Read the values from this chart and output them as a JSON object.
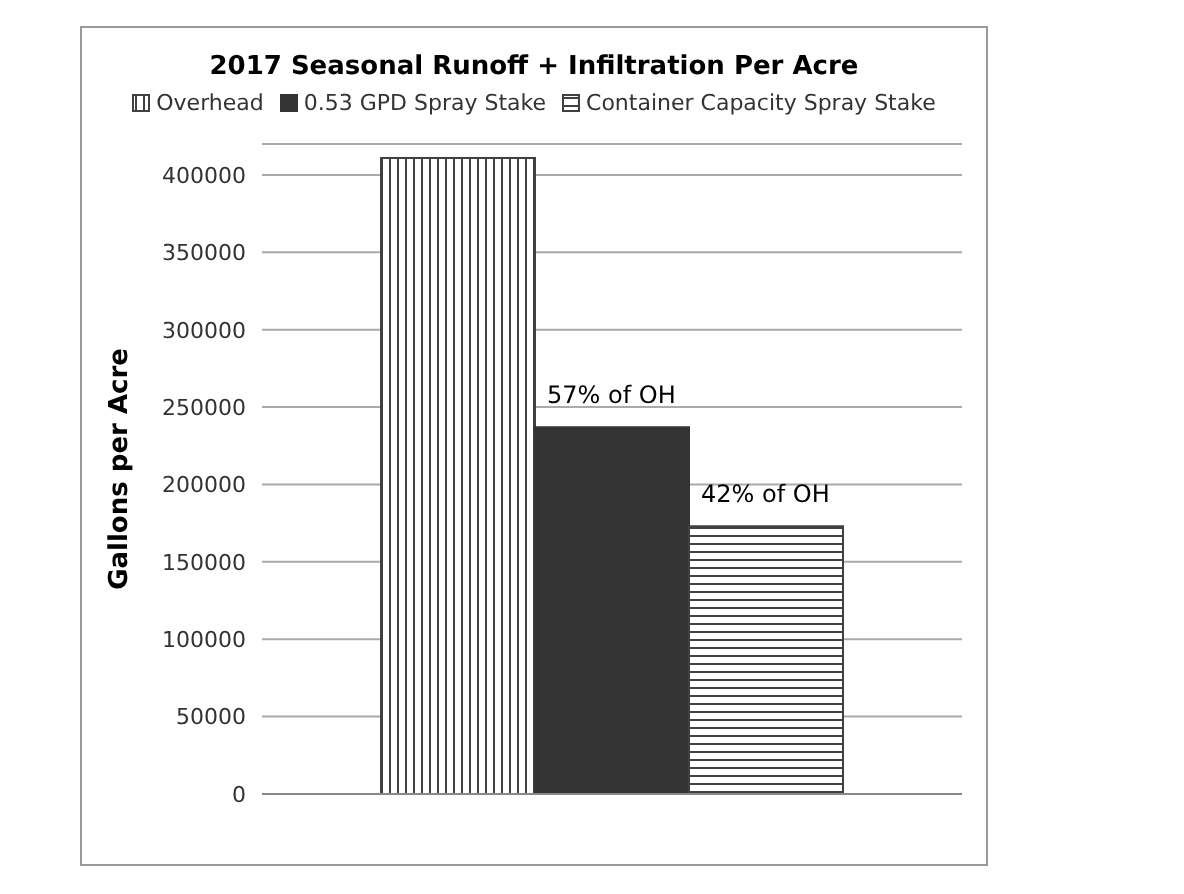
{
  "chart_data": {
    "type": "bar",
    "title": "2017 Seasonal Runoff + Infiltration Per Acre",
    "ylabel": "Gallons per Acre",
    "categories": [
      null
    ],
    "series": [
      {
        "name": "Overhead",
        "color": "#404040",
        "values": [
          411000
        ]
      },
      {
        "name": "0.53 GPD Spray Stake",
        "color": "#333333",
        "values": [
          237000
        ]
      },
      {
        "name": "Container Capacity Spray Stake",
        "color": "#404040",
        "values": [
          173000
        ]
      }
    ],
    "ylim": [
      0,
      420000
    ],
    "yticks": [
      0,
      50000,
      100000,
      150000,
      200000,
      250000,
      300000,
      350000,
      400000
    ],
    "grid": "y",
    "legend": "top",
    "annotations": [
      "57% of OH",
      "42% of OH"
    ]
  }
}
